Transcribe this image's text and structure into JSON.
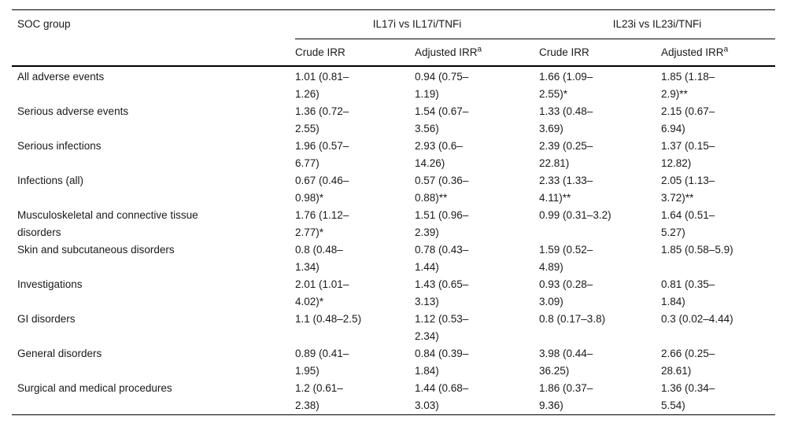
{
  "colors": {
    "background": "#ffffff",
    "text": "#1a1a1a",
    "rule": "#000000"
  },
  "table": {
    "col1_header": "SOC group",
    "spanners": [
      {
        "label": "IL17i vs IL17i/TNFi"
      },
      {
        "label": "IL23i vs IL23i/TNFi"
      }
    ],
    "subheaders": [
      {
        "label": "Crude IRR"
      },
      {
        "label": "Adjusted IRR",
        "sup": "a"
      },
      {
        "label": "Crude IRR"
      },
      {
        "label": "Adjusted IRR",
        "sup": "a"
      }
    ],
    "rows": [
      {
        "label": "All adverse events",
        "cells": [
          [
            "1.01 (0.81–",
            "1.26)"
          ],
          [
            "0.94 (0.75–",
            "1.19)"
          ],
          [
            "1.66 (1.09–",
            "2.55)*"
          ],
          [
            "1.85 (1.18–",
            "2.9)**"
          ]
        ]
      },
      {
        "label": "Serious adverse events",
        "cells": [
          [
            "1.36 (0.72–",
            "2.55)"
          ],
          [
            "1.54 (0.67–",
            "3.56)"
          ],
          [
            "1.33 (0.48–",
            "3.69)"
          ],
          [
            "2.15 (0.67–",
            "6.94)"
          ]
        ]
      },
      {
        "label": "Serious infections",
        "cells": [
          [
            "1.96 (0.57–",
            "6.77)"
          ],
          [
            "2.93 (0.6–",
            "14.26)"
          ],
          [
            "2.39 (0.25–",
            "22.81)"
          ],
          [
            "1.37 (0.15–",
            "12.82)"
          ]
        ]
      },
      {
        "label": "Infections (all)",
        "cells": [
          [
            "0.67 (0.46–",
            "0.98)*"
          ],
          [
            "0.57 (0.36–",
            "0.88)**"
          ],
          [
            "2.33 (1.33–",
            "4.11)**"
          ],
          [
            "2.05 (1.13–",
            "3.72)**"
          ]
        ]
      },
      {
        "label": [
          "Musculoskeletal and connective tissue",
          "disorders"
        ],
        "cells": [
          [
            "1.76 (1.12–",
            "2.77)*"
          ],
          [
            "1.51 (0.96–",
            "2.39)"
          ],
          [
            "0.99 (0.31–3.2)"
          ],
          [
            "1.64 (0.51–",
            "5.27)"
          ]
        ]
      },
      {
        "label": "Skin and subcutaneous disorders",
        "cells": [
          [
            "0.8 (0.48–",
            "1.34)"
          ],
          [
            "0.78 (0.43–",
            "1.44)"
          ],
          [
            "1.59 (0.52–",
            "4.89)"
          ],
          [
            "1.85 (0.58–5.9)"
          ]
        ]
      },
      {
        "label": "Investigations",
        "cells": [
          [
            "2.01 (1.01–",
            "4.02)*"
          ],
          [
            "1.43 (0.65–",
            "3.13)"
          ],
          [
            "0.93 (0.28–",
            "3.09)"
          ],
          [
            "0.81 (0.35–",
            "1.84)"
          ]
        ]
      },
      {
        "label": "GI disorders",
        "cells": [
          [
            "1.1 (0.48–2.5)"
          ],
          [
            "1.12 (0.53–",
            "2.34)"
          ],
          [
            "0.8 (0.17–3.8)"
          ],
          [
            "0.3 (0.02–4.44)"
          ]
        ]
      },
      {
        "label": "General disorders",
        "cells": [
          [
            "0.89 (0.41–",
            "1.95)"
          ],
          [
            "0.84 (0.39–",
            "1.84)"
          ],
          [
            "3.98 (0.44–",
            "36.25)"
          ],
          [
            "2.66 (0.25–",
            "28.61)"
          ]
        ]
      },
      {
        "label": "Surgical and medical procedures",
        "cells": [
          [
            "1.2 (0.61–",
            "2.38)"
          ],
          [
            "1.44 (0.68–",
            "3.03)"
          ],
          [
            "1.86 (0.37–",
            "9.36)"
          ],
          [
            "1.36 (0.34–",
            "5.54)"
          ]
        ]
      }
    ]
  }
}
